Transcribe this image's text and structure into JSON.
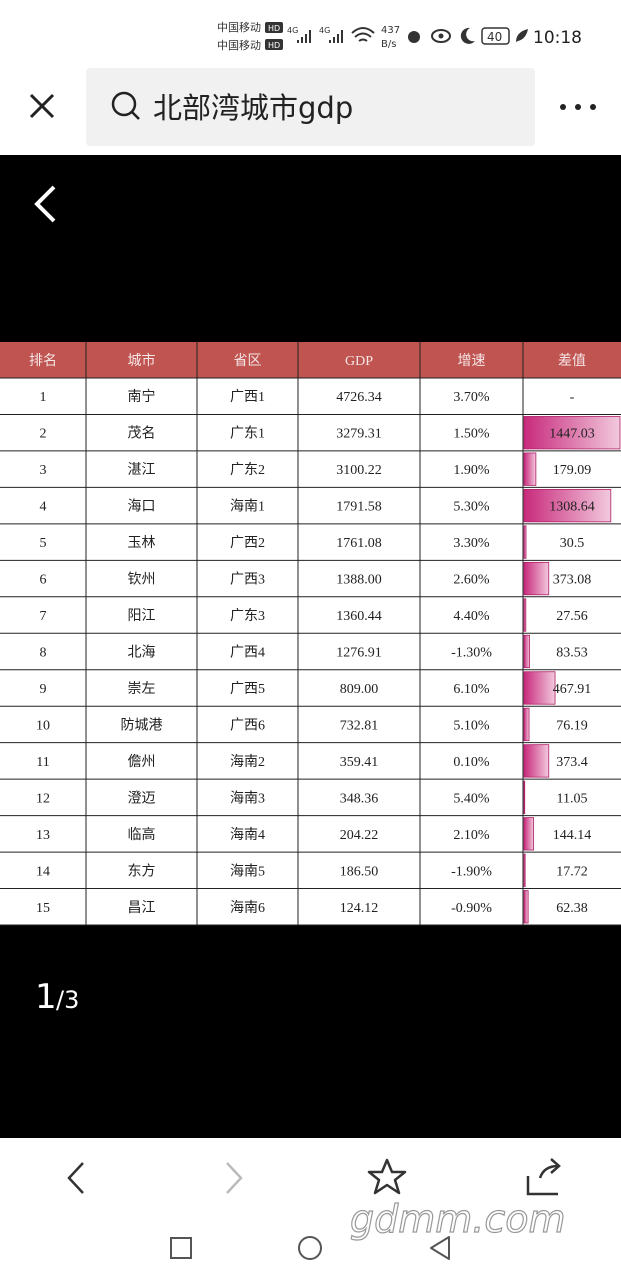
{
  "status_bar": {
    "carrier": "中国移动",
    "hd": "HD",
    "network": "4G",
    "speed": "437",
    "speed_unit": "B/s",
    "battery": "40",
    "time": "10:18"
  },
  "search": {
    "query": "北部湾城市gdp"
  },
  "table": {
    "headers": [
      "排名",
      "城市",
      "省区",
      "GDP",
      "增速",
      "差值"
    ],
    "rows": [
      [
        "1",
        "南宁",
        "广西1",
        "4726.34",
        "3.70%",
        "-"
      ],
      [
        "2",
        "茂名",
        "广东1",
        "3279.31",
        "1.50%",
        "1447.03"
      ],
      [
        "3",
        "湛江",
        "广东2",
        "3100.22",
        "1.90%",
        "179.09"
      ],
      [
        "4",
        "海口",
        "海南1",
        "1791.58",
        "5.30%",
        "1308.64"
      ],
      [
        "5",
        "玉林",
        "广西2",
        "1761.08",
        "3.30%",
        "30.5"
      ],
      [
        "6",
        "钦州",
        "广西3",
        "1388.00",
        "2.60%",
        "373.08"
      ],
      [
        "7",
        "阳江",
        "广东3",
        "1360.44",
        "4.40%",
        "27.56"
      ],
      [
        "8",
        "北海",
        "广西4",
        "1276.91",
        "-1.30%",
        "83.53"
      ],
      [
        "9",
        "崇左",
        "广西5",
        "809.00",
        "6.10%",
        "467.91"
      ],
      [
        "10",
        "防城港",
        "广西6",
        "732.81",
        "5.10%",
        "76.19"
      ],
      [
        "11",
        "儋州",
        "海南2",
        "359.41",
        "0.10%",
        "373.4"
      ],
      [
        "12",
        "澄迈",
        "海南3",
        "348.36",
        "5.40%",
        "11.05"
      ],
      [
        "13",
        "临高",
        "海南4",
        "204.22",
        "2.10%",
        "144.14"
      ],
      [
        "14",
        "东方",
        "海南5",
        "186.50",
        "-1.90%",
        "17.72"
      ],
      [
        "15",
        "昌江",
        "海南6",
        "124.12",
        "-0.90%",
        "62.38"
      ]
    ]
  },
  "pager": {
    "current": "1",
    "total": "/3"
  },
  "watermark": "gdmm.com"
}
